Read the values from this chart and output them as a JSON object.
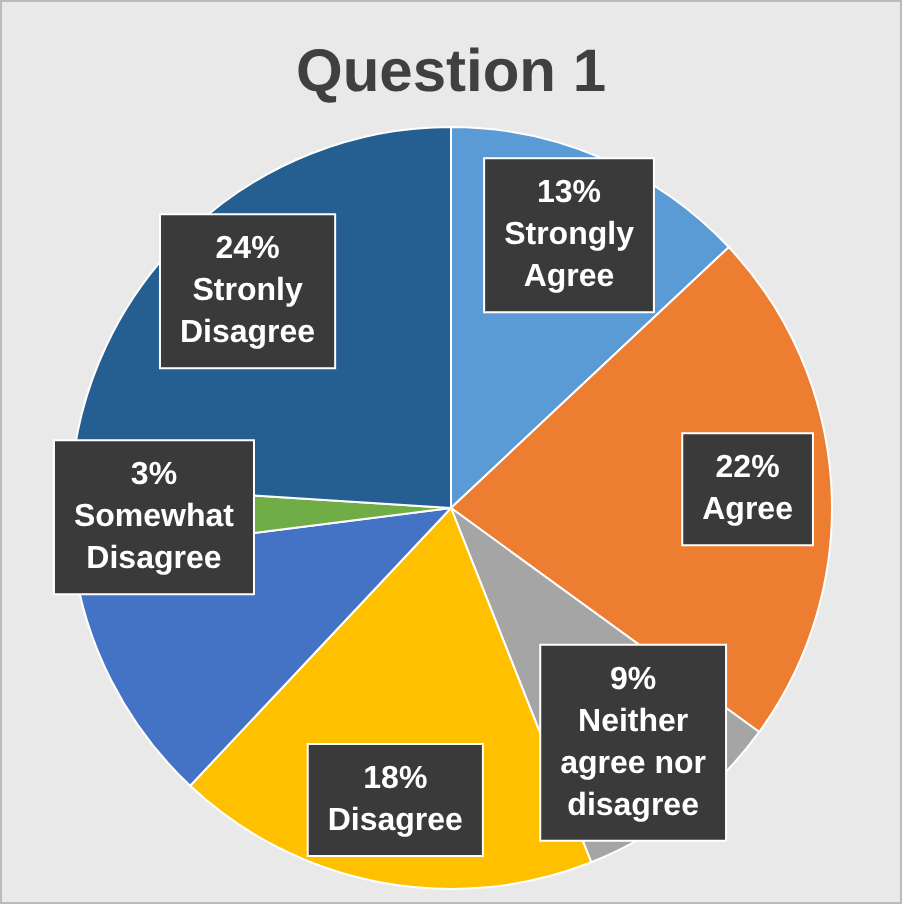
{
  "chart_data": {
    "type": "pie",
    "title": "Question 1",
    "categories": [
      "Strongly Agree",
      "Agree",
      "Neither agree nor disagree",
      "Disagree",
      null,
      "Somewhat Disagree",
      "Stronly Disagree"
    ],
    "values": [
      13,
      22,
      9,
      18,
      11,
      3,
      24
    ],
    "colors": [
      "#5b9bd5",
      "#ed7d31",
      "#a5a5a5",
      "#ffc000",
      "#4472c4",
      "#70ad47",
      "#255e91"
    ],
    "value_labels": [
      "13%",
      "22%",
      "9%",
      "18%",
      null,
      "3%",
      "24%"
    ],
    "legend": false
  }
}
